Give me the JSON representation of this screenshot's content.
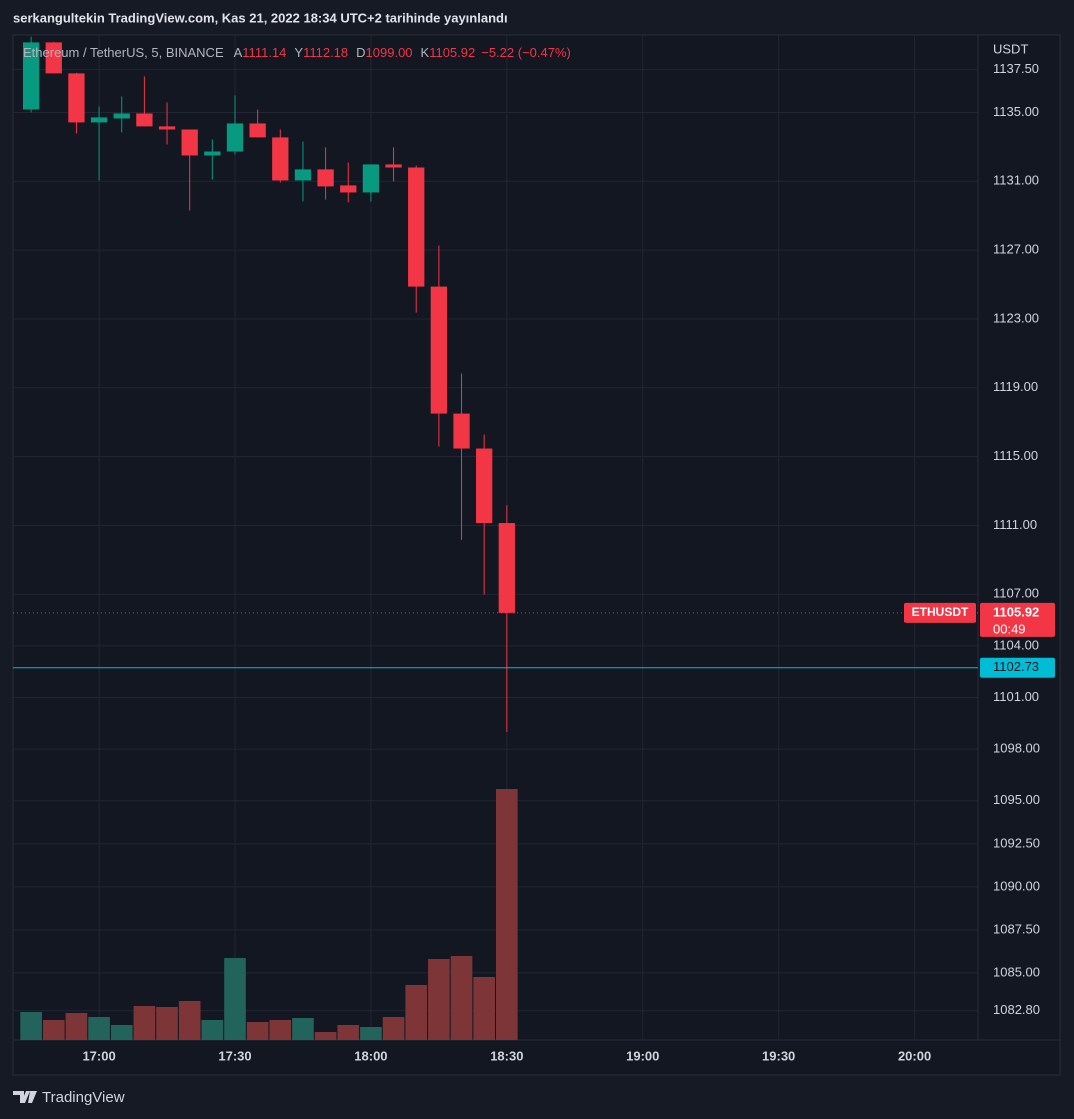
{
  "chart_data": {
    "type": "candlestick",
    "watermark_title": "serkangultekin TradingView.com, Kas 21, 2022 18:34 UTC+2 tarihinde yayınlandı",
    "title": "Ethereum / TetherUS, 5, BINANCE",
    "ohlc_keys": [
      "A",
      "Y",
      "D",
      "K"
    ],
    "ohlc_value_labels": [
      "1111.14",
      "1112.18",
      "1099.00",
      "1105.92"
    ],
    "change_label": "−5.22 (−0.47%)",
    "y_axis_label": "USDT",
    "symbol": "ETHUSDT",
    "countdown": "00:49",
    "x": [
      "16:45",
      "16:50",
      "16:55",
      "17:00",
      "17:05",
      "17:10",
      "17:15",
      "17:20",
      "17:25",
      "17:30",
      "17:35",
      "17:40",
      "17:45",
      "17:50",
      "17:55",
      "18:00",
      "18:05",
      "18:10",
      "18:15",
      "18:20",
      "18:25",
      "18:30"
    ],
    "open": [
      1135.17,
      1139.07,
      1137.27,
      1134.42,
      1134.65,
      1134.94,
      1134.19,
      1134.01,
      1132.5,
      1132.73,
      1134.36,
      1133.55,
      1131.05,
      1131.69,
      1130.76,
      1130.35,
      1131.98,
      1131.8,
      1124.88,
      1117.5,
      1115.47,
      1111.14
    ],
    "high": [
      1139.4,
      1139.1,
      1137.3,
      1135.35,
      1135.93,
      1137.09,
      1135.58,
      1133.95,
      1133.43,
      1135.99,
      1135.17,
      1134.01,
      1133.31,
      1132.97,
      1132.09,
      1131.98,
      1132.97,
      1131.92,
      1127.27,
      1119.83,
      1116.28,
      1112.18
    ],
    "low": [
      1135.0,
      1137.27,
      1133.78,
      1131.05,
      1133.84,
      1134.19,
      1133.14,
      1129.3,
      1131.1,
      1132.56,
      1133.55,
      1130.93,
      1129.83,
      1129.94,
      1129.77,
      1129.83,
      1130.99,
      1123.37,
      1115.58,
      1110.17,
      1106.98,
      1099.0
    ],
    "close": [
      1139.07,
      1137.27,
      1134.42,
      1134.71,
      1134.94,
      1134.19,
      1134.01,
      1132.5,
      1132.73,
      1134.36,
      1133.55,
      1131.05,
      1131.69,
      1130.7,
      1130.35,
      1131.98,
      1131.8,
      1124.88,
      1117.5,
      1115.47,
      1111.14,
      1105.92
    ],
    "volume": [
      28,
      20,
      27,
      23,
      15,
      34,
      33,
      39,
      20,
      82,
      18,
      20,
      22,
      8,
      15,
      13,
      23,
      55,
      81,
      84,
      63,
      251
    ],
    "volume_ylim": [
      0,
      1005
    ],
    "up_color": "#089981",
    "down_color": "#f23645",
    "volume_up_color": "#22635c",
    "volume_down_color": "#7d3538",
    "hline": {
      "value": 1102.73,
      "color": "#00bcd4"
    },
    "xlim": [
      "16:41",
      "20:14"
    ],
    "xticks": [
      "17:00",
      "17:30",
      "18:00",
      "18:30",
      "19:00",
      "19:30",
      "20:00"
    ],
    "ylim": [
      1081.1,
      1139.5
    ],
    "yticks": [
      {
        "value": 1137.5,
        "label": "1137.50"
      },
      {
        "value": 1135,
        "label": "1135.00"
      },
      {
        "value": 1131,
        "label": "1131.00"
      },
      {
        "value": 1127,
        "label": "1127.00"
      },
      {
        "value": 1123,
        "label": "1123.00"
      },
      {
        "value": 1119,
        "label": "1119.00"
      },
      {
        "value": 1115,
        "label": "1115.00"
      },
      {
        "value": 1111,
        "label": "1111.00"
      },
      {
        "value": 1107,
        "label": "1107.00"
      },
      {
        "value": 1104,
        "label": "1104.00"
      },
      {
        "value": 1101,
        "label": "1101.00"
      },
      {
        "value": 1098,
        "label": "1098.00"
      },
      {
        "value": 1095,
        "label": "1095.00"
      },
      {
        "value": 1092.5,
        "label": "1092.50"
      },
      {
        "value": 1090,
        "label": "1090.00"
      },
      {
        "value": 1087.5,
        "label": "1087.50"
      },
      {
        "value": 1085,
        "label": "1085.00"
      },
      {
        "value": 1082.8,
        "label": "1082.80"
      }
    ],
    "grid": true
  },
  "footer": {
    "brand": "TradingView"
  }
}
